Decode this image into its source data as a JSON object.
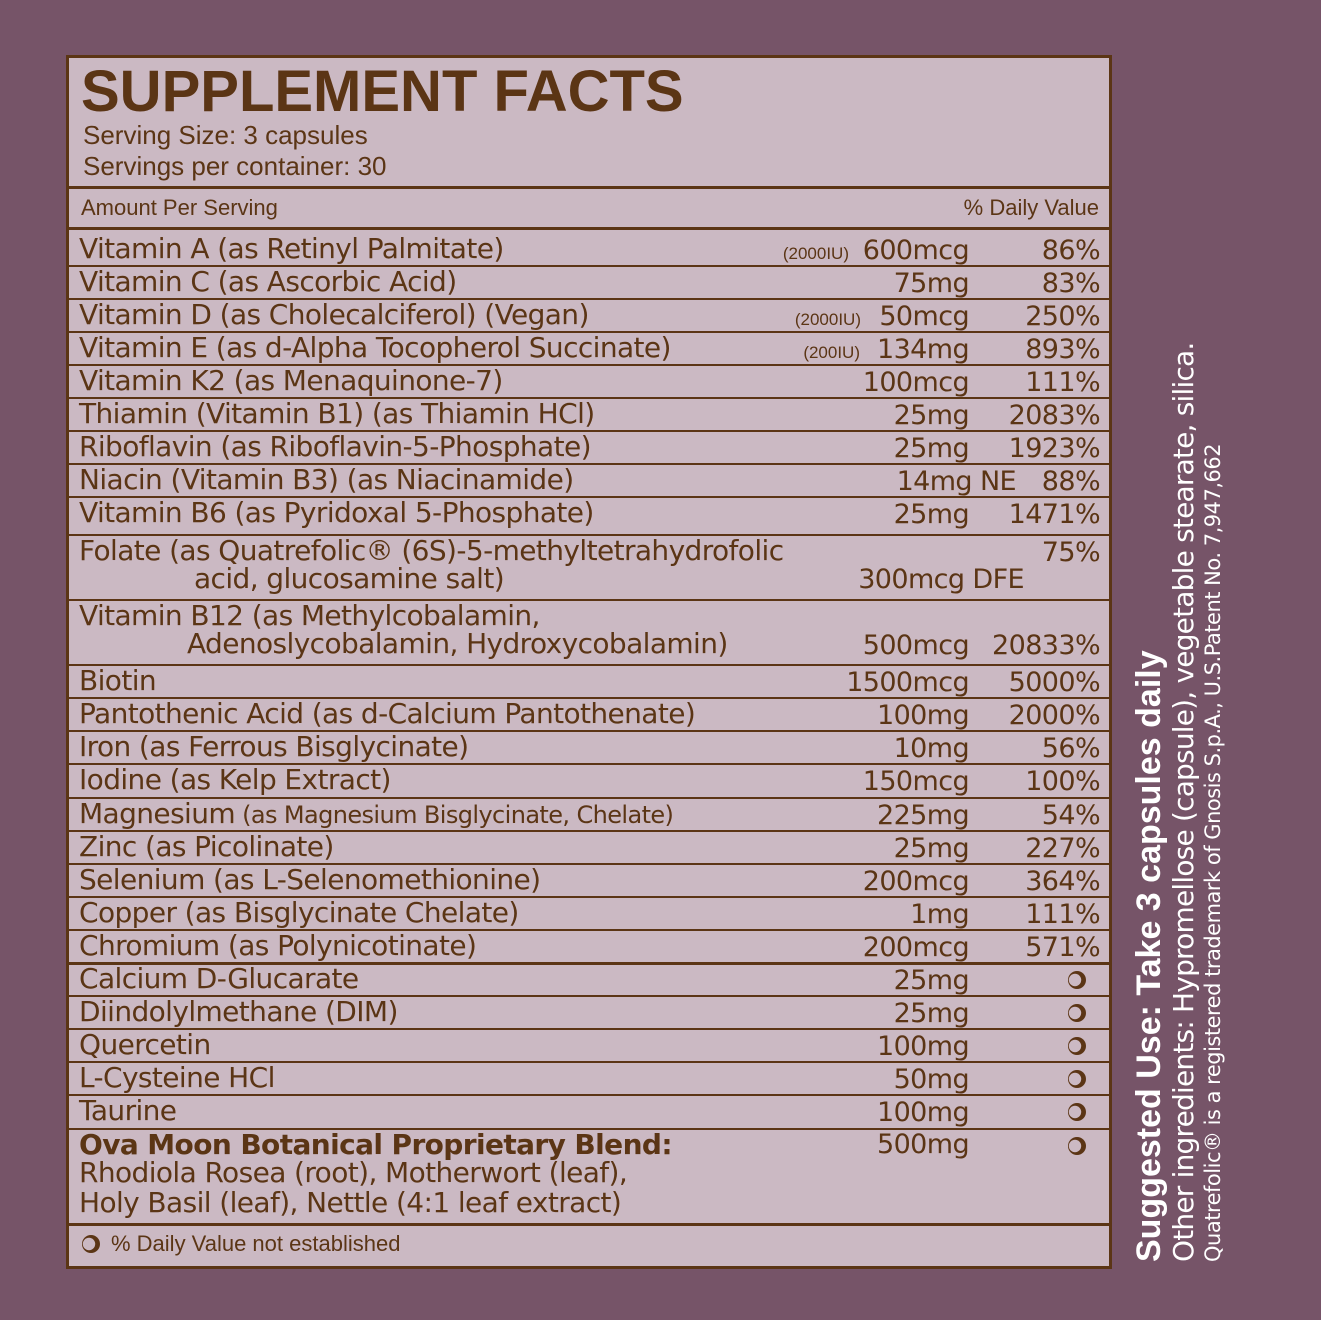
{
  "label": {
    "title": "SUPPLEMENT FACTS",
    "serving_size": "Serving Size: 3 capsules",
    "servings_per_container": "Servings per container: 30",
    "amount_per_serving": "Amount Per Serving",
    "daily_value_header": "% Daily Value",
    "footnote": "% Daily Value not established"
  },
  "rows": [
    {
      "name": "Vitamin A (as Retinyl Palmitate)",
      "iu": "(2000IU)",
      "amount": "600mcg",
      "dv": "86%"
    },
    {
      "name": "Vitamin C (as Ascorbic Acid)",
      "iu": "",
      "amount": "75mg",
      "dv": "83%"
    },
    {
      "name": "Vitamin D (as Cholecalciferol) (Vegan)",
      "iu": "(2000IU)",
      "amount": "50mcg",
      "dv": "250%"
    },
    {
      "name": "Vitamin E (as d-Alpha Tocopherol Succinate)",
      "iu": "(200IU)",
      "amount": "134mg",
      "dv": "893%"
    },
    {
      "name": "Vitamin K2 (as Menaquinone-7)",
      "iu": "",
      "amount": "100mcg",
      "dv": "111%"
    },
    {
      "name": "Thiamin (Vitamin B1) (as Thiamin HCl)",
      "iu": "",
      "amount": "25mg",
      "dv": "2083%"
    },
    {
      "name": "Riboflavin (as Riboflavin-5-Phosphate)",
      "iu": "",
      "amount": "25mg",
      "dv": "1923%"
    },
    {
      "name": "Niacin (Vitamin B3) (as Niacinamide)",
      "iu": "",
      "amount": "14mg NE",
      "dv": "88%"
    },
    {
      "name": "Vitamin B6 (as Pyridoxal 5-Phosphate)",
      "iu": "",
      "amount": "25mg",
      "dv": "1471%"
    },
    {
      "name": "Folate (as Quatrefolic® (6S)-5-methyltetrahydrofolic",
      "name2": "acid, glucosamine salt)",
      "amount": "300mcg DFE",
      "dv": "75%"
    },
    {
      "name": "Vitamin B12 (as Methylcobalamin,",
      "name2": "Adenoslycobalamin, Hydroxycobalamin)",
      "amount": "500mcg",
      "dv": "20833%"
    },
    {
      "name": "Biotin",
      "amount": "1500mcg",
      "dv": "5000%"
    },
    {
      "name": "Pantothenic Acid (as d-Calcium Pantothenate)",
      "amount": "100mg",
      "dv": "2000%"
    },
    {
      "name": "Iron (as Ferrous Bisglycinate)",
      "amount": "10mg",
      "dv": "56%"
    },
    {
      "name": "Iodine (as Kelp Extract)",
      "amount": "150mcg",
      "dv": "100%"
    },
    {
      "name": "Magnesium",
      "name_small": "(as Magnesium Bisglycinate, Chelate)",
      "amount": "225mg",
      "dv": "54%"
    },
    {
      "name": "Zinc (as Picolinate)",
      "amount": "25mg",
      "dv": "227%"
    },
    {
      "name": "Selenium (as L-Selenomethionine)",
      "amount": "200mcg",
      "dv": "364%"
    },
    {
      "name": "Copper (as Bisglycinate Chelate)",
      "amount": "1mg",
      "dv": "111%"
    },
    {
      "name": "Chromium (as Polynicotinate)",
      "amount": "200mcg",
      "dv": "571%"
    },
    {
      "name": "Calcium D-Glucarate",
      "amount": "25mg"
    },
    {
      "name": "Diindolylmethane (DIM)",
      "amount": "25mg"
    },
    {
      "name": "Quercetin",
      "amount": "100mg"
    },
    {
      "name": "L-Cysteine HCl",
      "amount": "50mg"
    },
    {
      "name": "Taurine",
      "amount": "100mg"
    },
    {
      "name": "Ova Moon Botanical Proprietary Blend:",
      "name2": "Rhodiola Rosea (root), Motherwort (leaf),",
      "name3": "Holy Basil (leaf), Nettle (4:1 leaf extract)",
      "amount": "500mg"
    }
  ],
  "side": {
    "suggested_use": "Suggested Use: Take 3 capsules daily",
    "other_ingredients": "Other ingredients:  Hypromellose (capsule), vegetable stearate, silica.",
    "trademark": "Quatrefolic® is a registered trademark of Gnosis S.p.A., U.S.Patent No. 7,947,662"
  },
  "colors": {
    "background": "#765468",
    "panel": "#cbb9c3",
    "ink": "#5b3515",
    "side_text": "#ffffff"
  },
  "icons": {
    "not_established": "crescent-moon-icon"
  }
}
